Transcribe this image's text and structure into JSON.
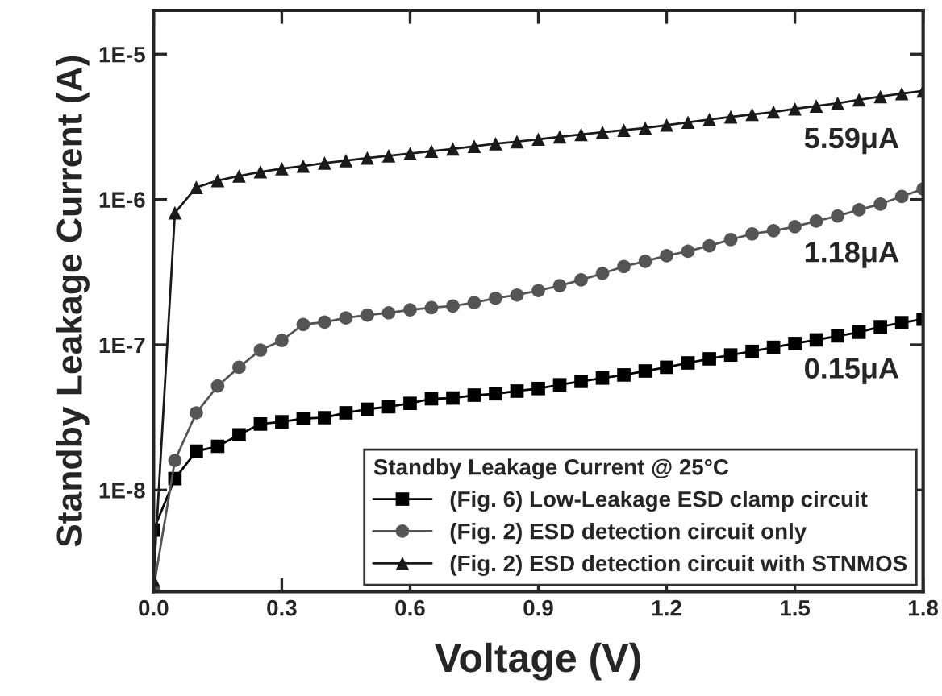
{
  "chart_data": {
    "type": "line",
    "xlabel": "Voltage (V)",
    "ylabel": "Standby Leakage Current (A)",
    "legend_title": "Standby Leakage Current @ 25°C",
    "legend": "bottom right",
    "grid": false,
    "log": "y",
    "x": [
      0,
      0.05,
      0.1,
      0.15,
      0.2,
      0.25,
      0.3,
      0.35,
      0.4,
      0.45,
      0.5,
      0.55,
      0.6,
      0.65,
      0.7,
      0.75,
      0.8,
      0.85,
      0.9,
      0.95,
      1.0,
      1.05,
      1.1,
      1.15,
      1.2,
      1.25,
      1.3,
      1.35,
      1.4,
      1.45,
      1.5,
      1.55,
      1.6,
      1.65,
      1.7,
      1.75,
      1.8
    ],
    "xlim": [
      0,
      1.8
    ],
    "xticks": [
      {
        "value": 0,
        "label": "0.0"
      },
      {
        "value": 0.3,
        "label": "0.3"
      },
      {
        "value": 0.6,
        "label": "0.6"
      },
      {
        "value": 0.9,
        "label": "0.9"
      },
      {
        "value": 1.2,
        "label": "1.2"
      },
      {
        "value": 1.5,
        "label": "1.5"
      },
      {
        "value": 1.8,
        "label": "1.8"
      }
    ],
    "ylim": [
      2e-09,
      2e-05
    ],
    "yticks": [
      {
        "value": 1e-08,
        "label": "1E-8"
      },
      {
        "value": 1e-07,
        "label": "1E-7"
      },
      {
        "value": 1e-06,
        "label": "1E-6"
      },
      {
        "value": 1e-05,
        "label": "1E-5"
      }
    ],
    "series": [
      {
        "name": "(Fig. 6) Low-Leakage ESD clamp circuit",
        "color": "#000000",
        "marker": "square",
        "values": [
          5.3e-09,
          1.2e-08,
          1.85e-08,
          2e-08,
          2.4e-08,
          2.85e-08,
          2.95e-08,
          3.1e-08,
          3.15e-08,
          3.4e-08,
          3.6e-08,
          3.75e-08,
          3.95e-08,
          4.25e-08,
          4.3e-08,
          4.5e-08,
          4.6e-08,
          4.8e-08,
          5e-08,
          5.3e-08,
          5.6e-08,
          5.9e-08,
          6.2e-08,
          6.6e-08,
          7e-08,
          7.5e-08,
          8e-08,
          8.5e-08,
          9e-08,
          9.6e-08,
          1.02e-07,
          1.08e-07,
          1.15e-07,
          1.22e-07,
          1.33e-07,
          1.42e-07,
          1.5e-07
        ]
      },
      {
        "name": "(Fig. 2) ESD detection circuit only",
        "color": "#555555",
        "marker": "circle",
        "values": [
          2.1e-09,
          1.6e-08,
          3.4e-08,
          5.2e-08,
          7e-08,
          9.2e-08,
          1.07e-07,
          1.38e-07,
          1.43e-07,
          1.53e-07,
          1.6e-07,
          1.66e-07,
          1.74e-07,
          1.8e-07,
          1.85e-07,
          1.95e-07,
          2.09e-07,
          2.2e-07,
          2.36e-07,
          2.55e-07,
          2.8e-07,
          3.1e-07,
          3.46e-07,
          3.75e-07,
          4.1e-07,
          4.4e-07,
          4.8e-07,
          5.3e-07,
          5.8e-07,
          6.1e-07,
          6.5e-07,
          7.1e-07,
          7.7e-07,
          8.5e-07,
          9.3e-07,
          1.05e-06,
          1.18e-06
        ]
      },
      {
        "name": "(Fig. 2) ESD detection circuit with STNMOS",
        "color": "#1a1a1a",
        "marker": "triangle",
        "values": [
          2.4e-09,
          8.1e-07,
          1.21e-06,
          1.35e-06,
          1.45e-06,
          1.55e-06,
          1.63e-06,
          1.7e-06,
          1.78e-06,
          1.85e-06,
          1.93e-06,
          2e-06,
          2.07e-06,
          2.15e-06,
          2.23e-06,
          2.32e-06,
          2.42e-06,
          2.5e-06,
          2.6e-06,
          2.7e-06,
          2.8e-06,
          2.9e-06,
          3e-06,
          3.1e-06,
          3.25e-06,
          3.4e-06,
          3.55e-06,
          3.7e-06,
          3.85e-06,
          4e-06,
          4.2e-06,
          4.4e-06,
          4.6e-06,
          4.85e-06,
          5.1e-06,
          5.35e-06,
          5.59e-06
        ]
      }
    ],
    "annotations": [
      "5.59μA",
      "1.18μA",
      "0.15μA"
    ]
  }
}
